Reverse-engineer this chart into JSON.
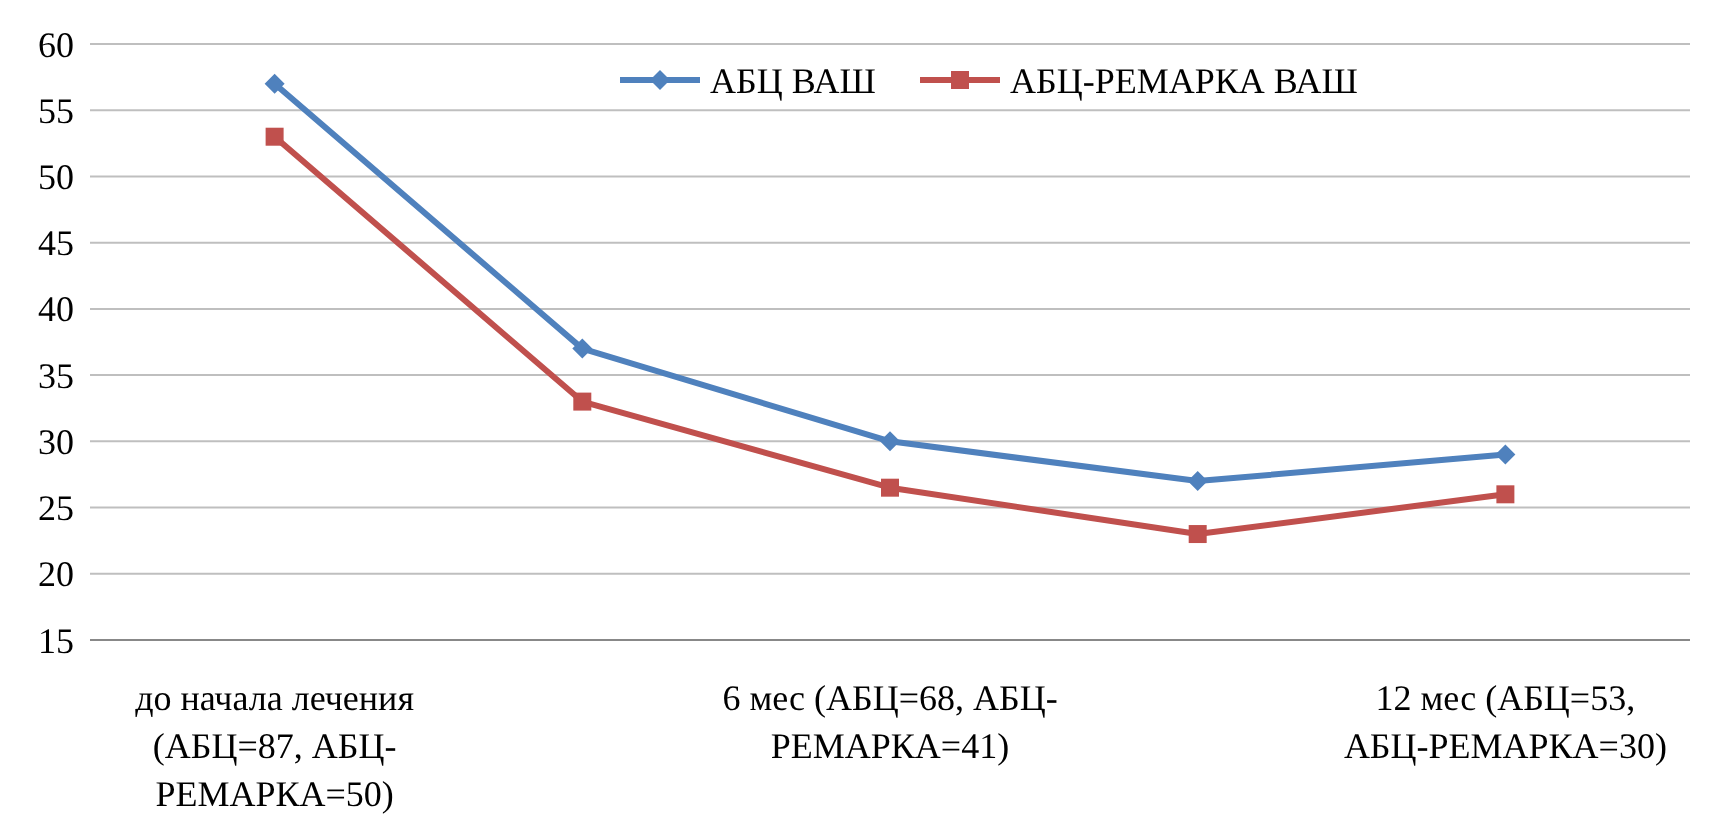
{
  "chart_data": {
    "type": "line",
    "categories": [
      "до начала лечения (АБЦ=87, АБЦ-РЕМАРКА=50)",
      null,
      "6 мес (АБЦ=68, АБЦ-РЕМАРКА=41)",
      null,
      "12 мес (АБЦ=53, АБЦ-РЕМАРКА=30)"
    ],
    "series": [
      {
        "name": "АБЦ  ВАШ",
        "color": "#4f81bd",
        "marker": "diamond",
        "values": [
          57,
          37,
          30,
          27,
          29
        ]
      },
      {
        "name": "АБЦ-РЕМАРКА ВАШ",
        "color": "#c0504d",
        "marker": "square",
        "values": [
          53,
          33,
          26.5,
          23,
          26
        ]
      }
    ],
    "ylim": [
      15,
      60
    ],
    "yticks": [
      15,
      20,
      25,
      30,
      35,
      40,
      45,
      50,
      55,
      60
    ],
    "grid": "y",
    "legend": "top",
    "line_style": "solid"
  }
}
